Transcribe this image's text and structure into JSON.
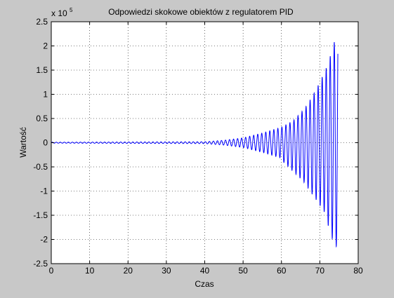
{
  "chart_data": {
    "type": "line",
    "title": "Odpowiedzi skokowe obiektów z regulatorem PID",
    "xlabel": "Czas",
    "ylabel": "Wartość",
    "y_exponent_label": {
      "base": "x 10",
      "exp": "5"
    },
    "xlim": [
      0,
      80
    ],
    "ylim": [
      -2.5,
      2.5
    ],
    "xticks": [
      0,
      10,
      20,
      30,
      40,
      50,
      60,
      70,
      80
    ],
    "xtick_labels": [
      "0",
      "10",
      "20",
      "30",
      "40",
      "50",
      "60",
      "70",
      "80"
    ],
    "yticks": [
      -2.5,
      -2,
      -1.5,
      -1,
      -0.5,
      0,
      0.5,
      1,
      1.5,
      2,
      2.5
    ],
    "ytick_labels": [
      "-2.5",
      "-2",
      "-1.5",
      "-1",
      "-0.5",
      "0",
      "0.5",
      "1",
      "1.5",
      "2",
      "2.5"
    ],
    "grid": true,
    "grid_style": "dotted",
    "colors": {
      "line": "#0000ff",
      "axes_bg": "#ffffff",
      "figure_bg": "#c8c8c8"
    },
    "series": [
      {
        "style": "oscillating response with growing amplitude",
        "x_end": 74.7,
        "period": 1.05,
        "peaks": [
          {
            "x": 0,
            "y": 0.01
          },
          {
            "x": 40,
            "y": 0.02
          },
          {
            "x": 45,
            "y": 0.05
          },
          {
            "x": 50,
            "y": 0.1
          },
          {
            "x": 55,
            "y": 0.2
          },
          {
            "x": 60,
            "y": 0.32
          },
          {
            "x": 63,
            "y": 0.45
          },
          {
            "x": 66,
            "y": 0.7
          },
          {
            "x": 68,
            "y": 0.95
          },
          {
            "x": 70,
            "y": 1.25
          },
          {
            "x": 72,
            "y": 1.6
          },
          {
            "x": 73.5,
            "y": 2.0
          },
          {
            "x": 74.7,
            "y": 2.35
          }
        ],
        "troughs": [
          {
            "x": 60.5,
            "y": -0.4
          },
          {
            "x": 65.7,
            "y": -0.8
          },
          {
            "x": 69.2,
            "y": -1.2
          },
          {
            "x": 71.3,
            "y": -1.45
          },
          {
            "x": 72.3,
            "y": -1.75
          },
          {
            "x": 73.9,
            "y": -2.15
          }
        ]
      }
    ]
  }
}
